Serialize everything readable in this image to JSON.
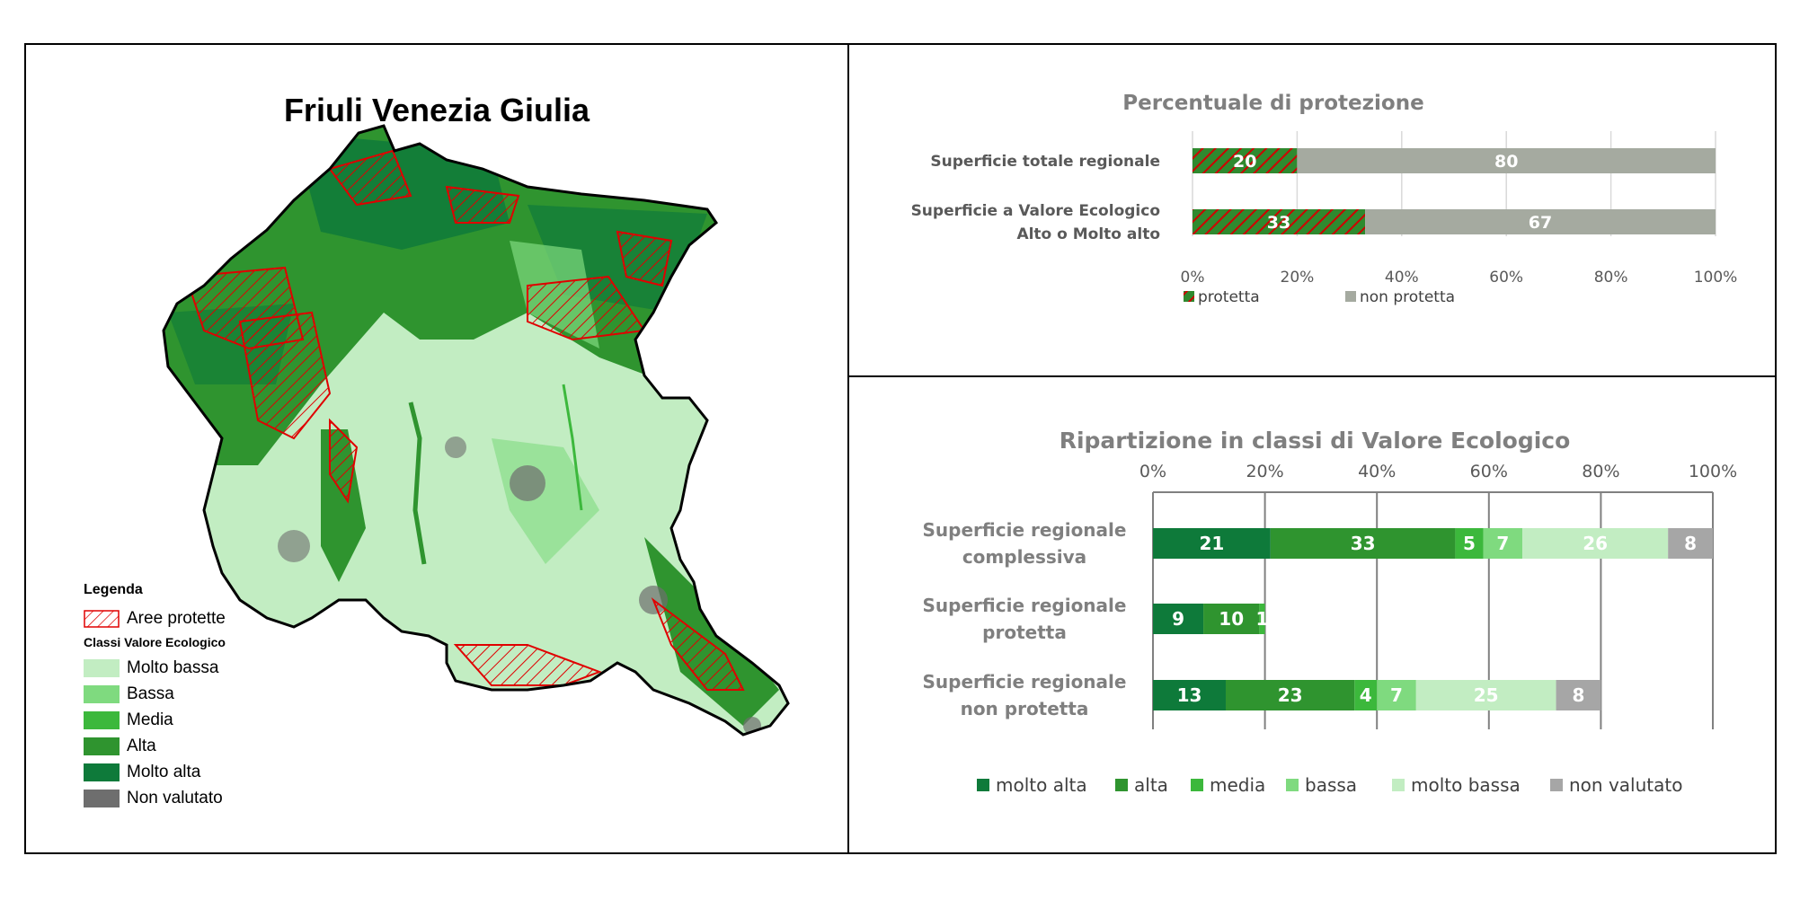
{
  "map": {
    "title": "Friuli Venezia Giulia",
    "legend": {
      "title": "Legenda",
      "protected_label": "Aree protette",
      "classes_title": "Classi Valore Ecologico",
      "classes": [
        {
          "label": "Molto bassa",
          "color": "#c2edc2"
        },
        {
          "label": "Bassa",
          "color": "#7fda7f"
        },
        {
          "label": "Media",
          "color": "#3cb83c"
        },
        {
          "label": "Alta",
          "color": "#2f942f"
        },
        {
          "label": "Molto alta",
          "color": "#0e7a3a"
        },
        {
          "label": "Non valutato",
          "color": "#6e6e6e"
        }
      ],
      "protected_color": "#e00000"
    }
  },
  "chart_data": [
    {
      "type": "bar",
      "orientation": "horizontal",
      "stacked": true,
      "title": "Percentuale di protezione",
      "categories": [
        "Superficie totale regionale",
        "Superficie a Valore Ecologico Alto o Molto alto"
      ],
      "category_lines": [
        [
          "Superficie totale regionale"
        ],
        [
          "Superficie a Valore Ecologico",
          "Alto o Molto alto"
        ]
      ],
      "series": [
        {
          "name": "protetta",
          "values": [
            20,
            33
          ],
          "color": "#2f8a2f",
          "hatch": "#d00000"
        },
        {
          "name": "non protetta",
          "values": [
            80,
            67
          ],
          "color": "#a5aaa0"
        }
      ],
      "ticks": [
        "0%",
        "20%",
        "40%",
        "60%",
        "80%",
        "100%"
      ],
      "xlim": [
        0,
        100
      ],
      "legend_position": "bottom"
    },
    {
      "type": "bar",
      "orientation": "horizontal",
      "stacked": true,
      "title": "Ripartizione in classi di Valore Ecologico",
      "categories": [
        "Superficie regionale complessiva",
        "Superficie regionale protetta",
        "Superficie regionale non protetta"
      ],
      "category_lines": [
        [
          "Superficie regionale",
          "complessiva"
        ],
        [
          "Superficie regionale",
          "protetta"
        ],
        [
          "Superficie regionale",
          "non protetta"
        ]
      ],
      "series": [
        {
          "name": "molto alta",
          "values": [
            21,
            9,
            13
          ],
          "color": "#0e7a3a"
        },
        {
          "name": "alta",
          "values": [
            33,
            10,
            23
          ],
          "color": "#2f942f"
        },
        {
          "name": "media",
          "values": [
            5,
            1,
            4
          ],
          "color": "#3cb83c"
        },
        {
          "name": "bassa",
          "values": [
            7,
            0,
            7
          ],
          "color": "#7fda7f"
        },
        {
          "name": "molto bassa",
          "values": [
            26,
            0,
            25
          ],
          "color": "#c2edc2"
        },
        {
          "name": "non valutato",
          "values": [
            8,
            0,
            8
          ],
          "color": "#a6a6a6"
        }
      ],
      "ticks": [
        "0%",
        "20%",
        "40%",
        "60%",
        "80%",
        "100%"
      ],
      "xlim": [
        0,
        100
      ],
      "legend_position": "bottom"
    }
  ]
}
